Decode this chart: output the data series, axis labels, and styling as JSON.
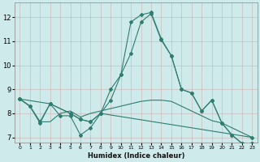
{
  "title": "",
  "xlabel": "Humidex (Indice chaleur)",
  "ylabel": "",
  "xlim": [
    -0.5,
    23.5
  ],
  "ylim": [
    6.8,
    12.6
  ],
  "yticks": [
    7,
    8,
    9,
    10,
    11,
    12
  ],
  "xticks": [
    0,
    1,
    2,
    3,
    4,
    5,
    6,
    7,
    8,
    9,
    10,
    11,
    12,
    13,
    14,
    15,
    16,
    17,
    18,
    19,
    20,
    21,
    22,
    23
  ],
  "bg_color": "#ceeaea",
  "grid_color": "#b0cccc",
  "line_color": "#2e7d6e",
  "line1_x": [
    0,
    1,
    2,
    3,
    4,
    5,
    6,
    7,
    8,
    9,
    10,
    11,
    12,
    13,
    14,
    15,
    16,
    17,
    18,
    19,
    20,
    21,
    22,
    23
  ],
  "line1_y": [
    8.6,
    8.3,
    7.6,
    8.4,
    7.9,
    7.9,
    7.1,
    7.4,
    8.0,
    9.0,
    9.6,
    11.8,
    12.1,
    12.2,
    11.1,
    10.4,
    9.0,
    8.85,
    8.1,
    8.55,
    7.6,
    7.1,
    6.75,
    6.75
  ],
  "line2_x": [
    0,
    1,
    2,
    3,
    4,
    5,
    6,
    7,
    8,
    9,
    10,
    11,
    12,
    13,
    14,
    15,
    16,
    17,
    18,
    19,
    20,
    21,
    22,
    23
  ],
  "line2_y": [
    8.6,
    8.3,
    7.65,
    7.65,
    8.0,
    8.1,
    7.85,
    8.0,
    8.1,
    8.2,
    8.3,
    8.4,
    8.5,
    8.55,
    8.55,
    8.5,
    8.3,
    8.1,
    7.9,
    7.7,
    7.6,
    7.4,
    7.2,
    7.0
  ],
  "line3_x": [
    0,
    3,
    5,
    6,
    7,
    8,
    9,
    10,
    11,
    12,
    13,
    14,
    15,
    16,
    17,
    18,
    19,
    20,
    21,
    22,
    23
  ],
  "line3_y": [
    8.6,
    8.4,
    8.0,
    7.75,
    7.65,
    8.0,
    8.55,
    9.6,
    10.5,
    11.8,
    12.15,
    11.05,
    10.4,
    9.0,
    8.85,
    8.1,
    8.55,
    7.6,
    7.1,
    6.75,
    6.75
  ],
  "line4_x": [
    0,
    1,
    2,
    3,
    5,
    6,
    7,
    8,
    23
  ],
  "line4_y": [
    8.6,
    8.3,
    7.65,
    8.4,
    8.0,
    7.75,
    7.65,
    8.0,
    7.0
  ]
}
